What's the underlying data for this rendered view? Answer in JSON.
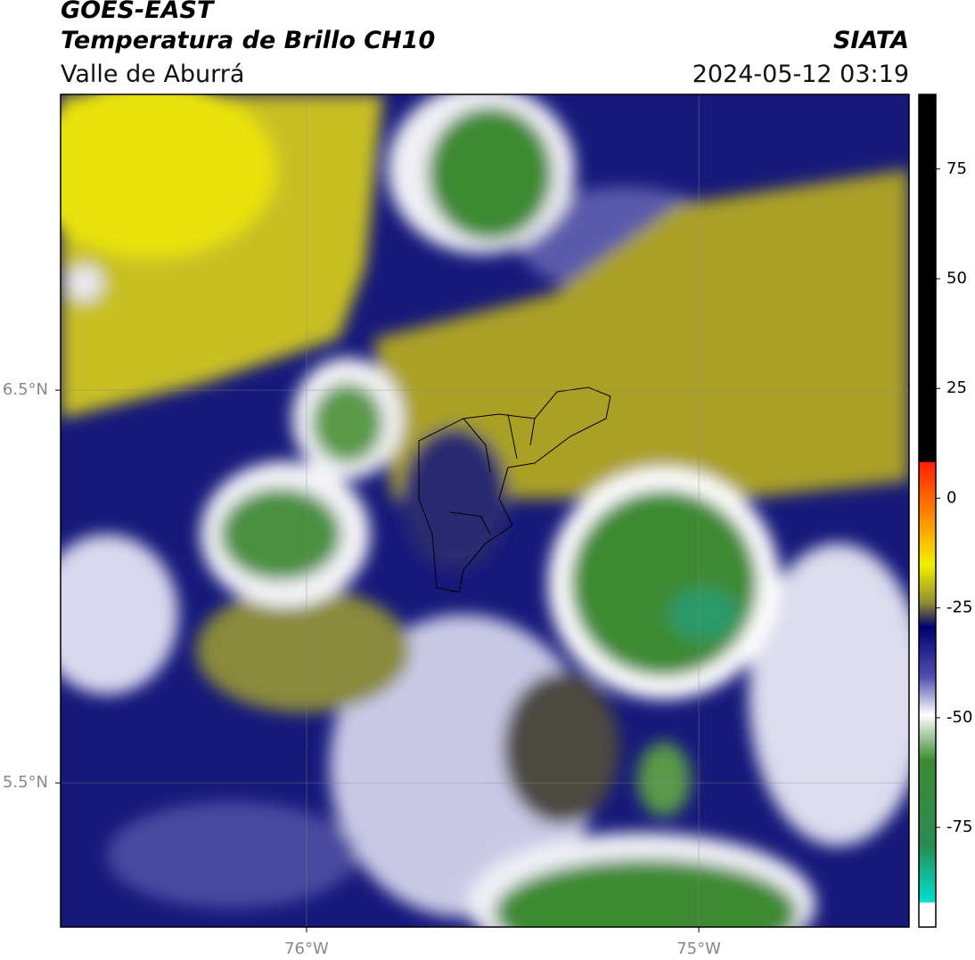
{
  "header": {
    "satellite": "GOES-EAST",
    "product": "Temperatura de Brillo CH10",
    "region": "Valle de Aburrá",
    "source": "SIATA",
    "datetime": "2024-05-12 03:19"
  },
  "map": {
    "lonlim": [
      -76.627,
      -74.464
    ],
    "latlim": [
      5.133,
      7.253
    ],
    "lon_ticks": [
      {
        "value": -76,
        "label": "76°W"
      },
      {
        "value": -75,
        "label": "75°W"
      }
    ],
    "lat_ticks": [
      {
        "value": 6.5,
        "label": "6.5°N"
      },
      {
        "value": 5.5,
        "label": "5.5°N"
      }
    ]
  },
  "colorbar": {
    "lim": [
      -97.7,
      92
    ],
    "ticks": [
      75,
      50,
      25,
      0,
      -25,
      -50,
      -75
    ]
  }
}
